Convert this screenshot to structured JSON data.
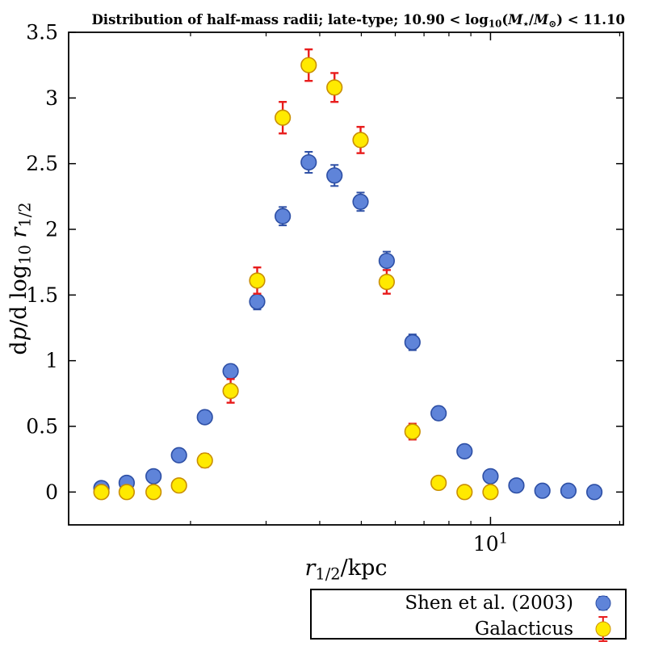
{
  "chart_data": {
    "type": "scatter",
    "title": "Distribution of half-mass radii; late-type; 10.90 < log₁₀(M⋆/M⊙) < 11.10",
    "title_segments": [
      {
        "text": "Distribution of half-mass radii; late-type; 10.90 < log",
        "style": "bold"
      },
      {
        "text": "10",
        "style": "bold sub"
      },
      {
        "text": "(",
        "style": "bold"
      },
      {
        "text": "M",
        "style": "bold italic"
      },
      {
        "text": "⋆",
        "style": "bold sub"
      },
      {
        "text": "/",
        "style": "bold"
      },
      {
        "text": "M",
        "style": "bold italic"
      },
      {
        "text": "⊙",
        "style": "bold sub"
      },
      {
        "text": ") < 11.10",
        "style": "bold"
      }
    ],
    "xlabel": "r₁/₂/kpc",
    "xlabel_segments": [
      {
        "text": "r",
        "style": "italic"
      },
      {
        "text": "1/2",
        "style": "sub"
      },
      {
        "text": "/kpc",
        "style": ""
      }
    ],
    "ylabel": "dp/d log₁₀ r₁/₂",
    "ylabel_segments": [
      {
        "text": "d",
        "style": ""
      },
      {
        "text": "p",
        "style": "italic"
      },
      {
        "text": "/d log",
        "style": ""
      },
      {
        "text": "10",
        "style": "sub"
      },
      {
        "text": " ",
        "style": ""
      },
      {
        "text": "r",
        "style": "italic"
      },
      {
        "text": "1/2",
        "style": "sub"
      }
    ],
    "x_scale": "log",
    "xlim": [
      1.04,
      20.4
    ],
    "ylim": [
      -0.25,
      3.5
    ],
    "grid": false,
    "legend_position": "bottom-right-outside",
    "yticks": [
      {
        "value": 0,
        "label": "0"
      },
      {
        "value": 0.5,
        "label": "0.5"
      },
      {
        "value": 1,
        "label": "1"
      },
      {
        "value": 1.5,
        "label": "1.5"
      },
      {
        "value": 2,
        "label": "2"
      },
      {
        "value": 2.5,
        "label": "2.5"
      },
      {
        "value": 3,
        "label": "3"
      },
      {
        "value": 3.5,
        "label": "3.5"
      }
    ],
    "xticks_major": [
      {
        "value": 10,
        "segments": [
          {
            "text": "10",
            "style": ""
          },
          {
            "text": "1",
            "style": "sup"
          }
        ]
      }
    ],
    "xticks_minor": [
      2,
      3,
      4,
      5,
      6,
      7,
      8,
      9,
      20
    ],
    "series": [
      {
        "id": "shen",
        "name": "Shen et al. (2003)",
        "color": "#5f84d9",
        "edge_color": "#2d4fa5",
        "error_color": "#2d4fa5",
        "legend_bar_half": 8,
        "x": [
          1.24,
          1.42,
          1.64,
          1.88,
          2.16,
          2.48,
          2.86,
          3.28,
          3.77,
          4.33,
          4.98,
          5.73,
          6.58,
          7.57,
          8.7,
          10.0,
          11.49,
          13.21,
          15.19,
          17.46
        ],
        "y": [
          0.03,
          0.07,
          0.12,
          0.28,
          0.57,
          0.92,
          1.45,
          2.1,
          2.51,
          2.41,
          2.21,
          1.76,
          1.14,
          0.6,
          0.31,
          0.12,
          0.05,
          0.01,
          0.01,
          0.0
        ],
        "yerr": [
          0.01,
          0.01,
          0.02,
          0.03,
          0.04,
          0.05,
          0.06,
          0.07,
          0.08,
          0.08,
          0.07,
          0.07,
          0.06,
          0.05,
          0.04,
          0.03,
          0.02,
          0.01,
          0.01,
          0.01
        ]
      },
      {
        "id": "galacticus",
        "name": "Galacticus",
        "color": "#ffea00",
        "edge_color": "#c98f00",
        "error_color": "#e81c1c",
        "legend_bar_half": 15,
        "x": [
          1.24,
          1.42,
          1.64,
          1.88,
          2.16,
          2.48,
          2.86,
          3.28,
          3.77,
          4.33,
          4.98,
          5.73,
          6.58,
          7.57,
          8.7,
          10.0
        ],
        "y": [
          0.0,
          0.0,
          0.0,
          0.05,
          0.24,
          0.77,
          1.61,
          2.85,
          3.25,
          3.08,
          2.68,
          1.6,
          0.46,
          0.07,
          0.0,
          0.0
        ],
        "yerr": [
          0.02,
          0.02,
          0.02,
          0.03,
          0.05,
          0.09,
          0.1,
          0.12,
          0.12,
          0.11,
          0.1,
          0.09,
          0.06,
          0.03,
          0.02,
          0.02
        ]
      }
    ]
  }
}
